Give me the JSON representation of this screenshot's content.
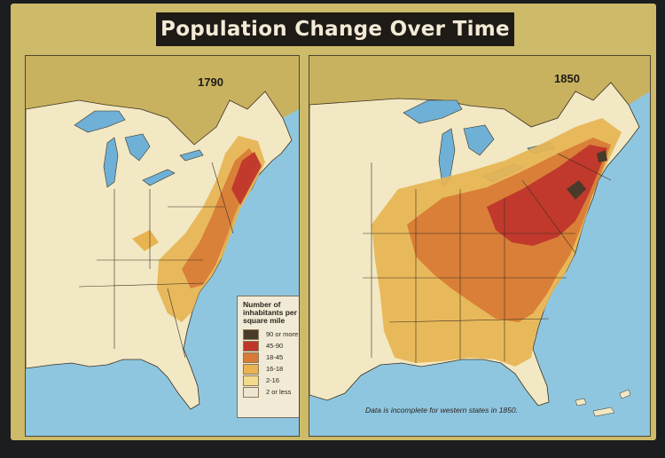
{
  "title": "Population Change Over Time",
  "maps": [
    {
      "year": "1790"
    },
    {
      "year": "1850"
    }
  ],
  "legend": {
    "title": "Number of inhabitants per square mile",
    "items": [
      {
        "label": "90 or more",
        "color": "#4a3a2a"
      },
      {
        "label": "45-90",
        "color": "#c0362b"
      },
      {
        "label": "18-45",
        "color": "#d77a35"
      },
      {
        "label": "16-18",
        "color": "#e7b451"
      },
      {
        "label": "2-16",
        "color": "#f3db8e"
      },
      {
        "label": "2 or less",
        "color": "#ece6d2"
      }
    ]
  },
  "note": "Data is incomplete for western states in 1850.",
  "colors": {
    "water": "#8fc6df",
    "land_outside": "#c9b25f",
    "sparse_land": "#f2e8c4",
    "border": "#3a3020"
  }
}
